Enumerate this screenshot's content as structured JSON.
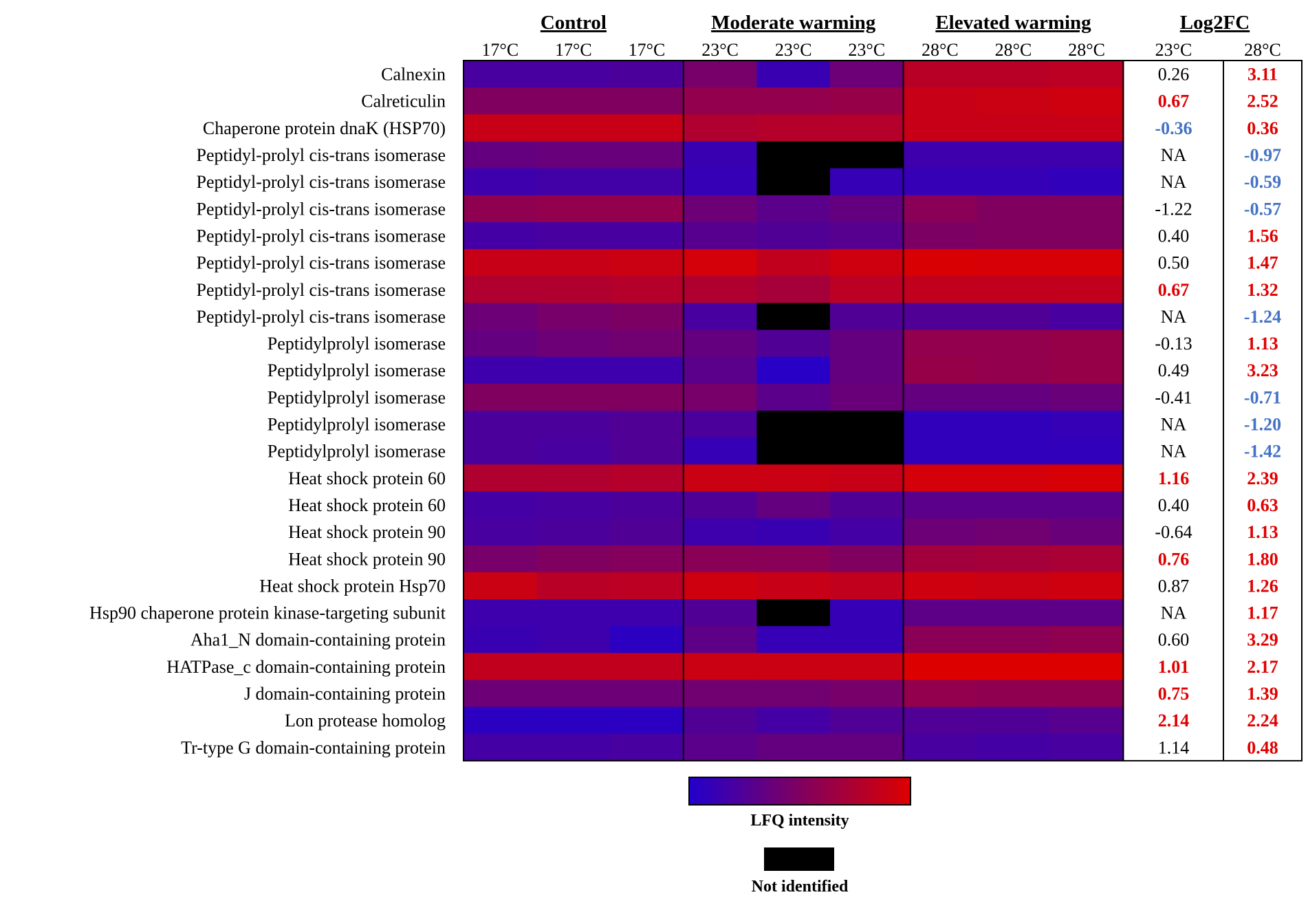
{
  "chart_data": {
    "type": "heatmap",
    "groups": [
      {
        "label": "Control",
        "columns": [
          "17°C",
          "17°C",
          "17°C"
        ]
      },
      {
        "label": "Moderate warming",
        "columns": [
          "23°C",
          "23°C",
          "23°C"
        ]
      },
      {
        "label": "Elevated warming",
        "columns": [
          "28°C",
          "28°C",
          "28°C"
        ]
      }
    ],
    "fc_header": {
      "label": "Log2FC",
      "columns": [
        "23°C",
        "28°C"
      ]
    },
    "color_scale": {
      "low": "#2200cc",
      "mid": "#800060",
      "high": "#dd0000",
      "missing": "#000000"
    },
    "fc_colors": {
      "up": "#e00000",
      "down": "#4472c4",
      "ns": "#000000"
    },
    "rows": [
      {
        "label": "Calnexin",
        "values": [
          0.2,
          0.2,
          0.22,
          0.45,
          0.12,
          0.4,
          0.8,
          0.8,
          0.82
        ],
        "fc": [
          "0.26",
          "3.11"
        ],
        "fc_sig": [
          "ns",
          "up"
        ]
      },
      {
        "label": "Calreticulin",
        "values": [
          0.5,
          0.5,
          0.5,
          0.6,
          0.6,
          0.62,
          0.88,
          0.9,
          0.92
        ],
        "fc": [
          "0.67",
          "2.52"
        ],
        "fc_sig": [
          "up",
          "up"
        ]
      },
      {
        "label": "Chaperone protein dnaK (HSP70)",
        "values": [
          0.88,
          0.88,
          0.88,
          0.75,
          0.78,
          0.78,
          0.88,
          0.88,
          0.88
        ],
        "fc": [
          "-0.36",
          "0.36"
        ],
        "fc_sig": [
          "down",
          "up"
        ]
      },
      {
        "label": "Peptidyl-prolyl cis-trans isomerase",
        "values": [
          0.35,
          0.37,
          0.37,
          0.12,
          null,
          null,
          0.15,
          0.15,
          0.15
        ],
        "fc": [
          "NA",
          "-0.97"
        ],
        "fc_sig": [
          "ns",
          "down"
        ]
      },
      {
        "label": "Peptidyl-prolyl cis-trans isomerase",
        "values": [
          0.15,
          0.17,
          0.17,
          0.1,
          null,
          0.1,
          0.1,
          0.1,
          0.08
        ],
        "fc": [
          "NA",
          "-0.59"
        ],
        "fc_sig": [
          "ns",
          "down"
        ]
      },
      {
        "label": "Peptidyl-prolyl cis-trans isomerase",
        "values": [
          0.58,
          0.6,
          0.6,
          0.4,
          0.3,
          0.35,
          0.55,
          0.5,
          0.5
        ],
        "fc": [
          "-1.22",
          "-0.57"
        ],
        "fc_sig": [
          "ns",
          "down"
        ]
      },
      {
        "label": "Peptidyl-prolyl cis-trans isomerase",
        "values": [
          0.18,
          0.2,
          0.2,
          0.28,
          0.25,
          0.28,
          0.48,
          0.5,
          0.5
        ],
        "fc": [
          "0.40",
          "1.56"
        ],
        "fc_sig": [
          "ns",
          "up"
        ]
      },
      {
        "label": "Peptidyl-prolyl cis-trans isomerase",
        "values": [
          0.88,
          0.88,
          0.9,
          0.95,
          0.85,
          0.92,
          0.98,
          0.97,
          0.97
        ],
        "fc": [
          "0.50",
          "1.47"
        ],
        "fc_sig": [
          "ns",
          "up"
        ]
      },
      {
        "label": "Peptidyl-prolyl cis-trans isomerase",
        "values": [
          0.75,
          0.75,
          0.78,
          0.75,
          0.7,
          0.82,
          0.85,
          0.85,
          0.85
        ],
        "fc": [
          "0.67",
          "1.32"
        ],
        "fc_sig": [
          "up",
          "up"
        ]
      },
      {
        "label": "Peptidyl-prolyl cis-trans isomerase",
        "values": [
          0.4,
          0.45,
          0.48,
          0.2,
          null,
          0.25,
          0.25,
          0.25,
          0.2
        ],
        "fc": [
          "NA",
          "-1.24"
        ],
        "fc_sig": [
          "ns",
          "down"
        ]
      },
      {
        "label": "Peptidylprolyl isomerase",
        "values": [
          0.35,
          0.4,
          0.42,
          0.35,
          0.25,
          0.35,
          0.6,
          0.6,
          0.62
        ],
        "fc": [
          "-0.13",
          "1.13"
        ],
        "fc_sig": [
          "ns",
          "up"
        ]
      },
      {
        "label": "Peptidylprolyl isomerase",
        "values": [
          0.15,
          0.15,
          0.15,
          0.3,
          0.03,
          0.35,
          0.62,
          0.6,
          0.62
        ],
        "fc": [
          "0.49",
          "3.23"
        ],
        "fc_sig": [
          "ns",
          "up"
        ]
      },
      {
        "label": "Peptidylprolyl isomerase",
        "values": [
          0.5,
          0.5,
          0.5,
          0.45,
          0.3,
          0.38,
          0.35,
          0.35,
          0.38
        ],
        "fc": [
          "-0.41",
          "-0.71"
        ],
        "fc_sig": [
          "ns",
          "down"
        ]
      },
      {
        "label": "Peptidylprolyl isomerase",
        "values": [
          0.22,
          0.22,
          0.25,
          0.22,
          null,
          null,
          0.08,
          0.08,
          0.1
        ],
        "fc": [
          "NA",
          "-1.20"
        ],
        "fc_sig": [
          "ns",
          "down"
        ]
      },
      {
        "label": "Peptidylprolyl isomerase",
        "values": [
          0.22,
          0.2,
          0.25,
          0.1,
          null,
          null,
          0.08,
          0.08,
          0.08
        ],
        "fc": [
          "NA",
          "-1.42"
        ],
        "fc_sig": [
          "ns",
          "down"
        ]
      },
      {
        "label": "Heat shock protein 60",
        "values": [
          0.75,
          0.75,
          0.78,
          0.9,
          0.9,
          0.88,
          0.95,
          0.95,
          0.97
        ],
        "fc": [
          "1.16",
          "2.39"
        ],
        "fc_sig": [
          "up",
          "up"
        ]
      },
      {
        "label": "Heat shock protein 60",
        "values": [
          0.18,
          0.2,
          0.22,
          0.25,
          0.35,
          0.25,
          0.3,
          0.3,
          0.3
        ],
        "fc": [
          "0.40",
          "0.63"
        ],
        "fc_sig": [
          "ns",
          "up"
        ]
      },
      {
        "label": "Heat shock protein 90",
        "values": [
          0.2,
          0.22,
          0.25,
          0.15,
          0.12,
          0.18,
          0.4,
          0.42,
          0.38
        ],
        "fc": [
          "-0.64",
          "1.13"
        ],
        "fc_sig": [
          "ns",
          "up"
        ]
      },
      {
        "label": "Heat shock protein 90",
        "values": [
          0.45,
          0.5,
          0.52,
          0.55,
          0.55,
          0.5,
          0.68,
          0.7,
          0.72
        ],
        "fc": [
          "0.76",
          "1.80"
        ],
        "fc_sig": [
          "up",
          "up"
        ]
      },
      {
        "label": "Heat shock protein Hsp70",
        "values": [
          0.9,
          0.8,
          0.82,
          0.92,
          0.88,
          0.85,
          0.92,
          0.9,
          0.92
        ],
        "fc": [
          "0.87",
          "1.26"
        ],
        "fc_sig": [
          "ns",
          "up"
        ]
      },
      {
        "label": "Hsp90 chaperone protein kinase-targeting subunit",
        "values": [
          0.15,
          0.15,
          0.15,
          0.25,
          null,
          0.1,
          0.32,
          0.32,
          0.32
        ],
        "fc": [
          "NA",
          "1.17"
        ],
        "fc_sig": [
          "ns",
          "up"
        ]
      },
      {
        "label": "Aha1_N domain-containing protein",
        "values": [
          0.12,
          0.15,
          0.05,
          0.32,
          0.1,
          0.1,
          0.55,
          0.55,
          0.58
        ],
        "fc": [
          "0.60",
          "3.29"
        ],
        "fc_sig": [
          "ns",
          "up"
        ]
      },
      {
        "label": "HATPase_c domain-containing protein",
        "values": [
          0.85,
          0.85,
          0.85,
          0.9,
          0.9,
          0.9,
          1.0,
          1.0,
          1.0
        ],
        "fc": [
          "1.01",
          "2.17"
        ],
        "fc_sig": [
          "up",
          "up"
        ]
      },
      {
        "label": "J domain-containing protein",
        "values": [
          0.4,
          0.4,
          0.4,
          0.42,
          0.42,
          0.45,
          0.6,
          0.58,
          0.58
        ],
        "fc": [
          "0.75",
          "1.39"
        ],
        "fc_sig": [
          "up",
          "up"
        ]
      },
      {
        "label": "Lon protease homolog",
        "values": [
          0.05,
          0.05,
          0.05,
          0.25,
          0.18,
          0.25,
          0.25,
          0.25,
          0.28
        ],
        "fc": [
          "2.14",
          "2.24"
        ],
        "fc_sig": [
          "up",
          "up"
        ]
      },
      {
        "label": "Tr-type G domain-containing protein",
        "values": [
          0.18,
          0.18,
          0.2,
          0.3,
          0.35,
          0.35,
          0.2,
          0.18,
          0.2
        ],
        "fc": [
          "1.14",
          "0.48"
        ],
        "fc_sig": [
          "ns",
          "up"
        ]
      }
    ],
    "legend": {
      "scale_label": "LFQ intensity",
      "missing_label": "Not identified"
    }
  }
}
